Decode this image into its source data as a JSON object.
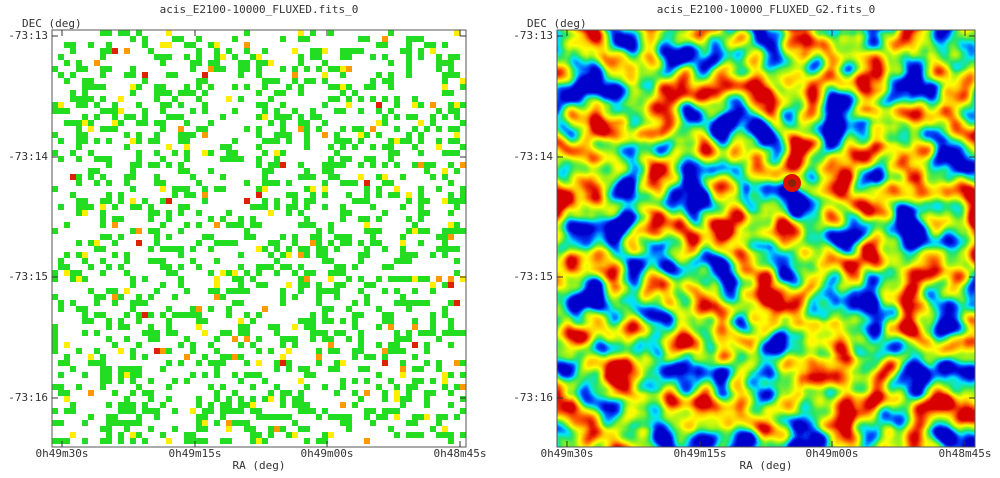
{
  "panels": [
    {
      "title": "acis_E2100-10000_FLUXED.fits_0",
      "y_label": "DEC (deg)",
      "x_label": "RA (deg)",
      "y_ticks": [
        "-73:13",
        "-73:14",
        "-73:15",
        "-73:16"
      ],
      "x_ticks": [
        "0h49m30s",
        "0h49m15s",
        "0h49m00s",
        "0h48m45s"
      ]
    },
    {
      "title": "acis_E2100-10000_FLUXED_G2.fits_0",
      "y_label": "DEC (deg)",
      "x_label": "RA (deg)",
      "y_ticks": [
        "-73:13",
        "-73:14",
        "-73:15",
        "-73:16"
      ],
      "x_ticks": [
        "0h49m30s",
        "0h49m15s",
        "0h49m00s",
        "0h48m45s"
      ]
    }
  ]
}
